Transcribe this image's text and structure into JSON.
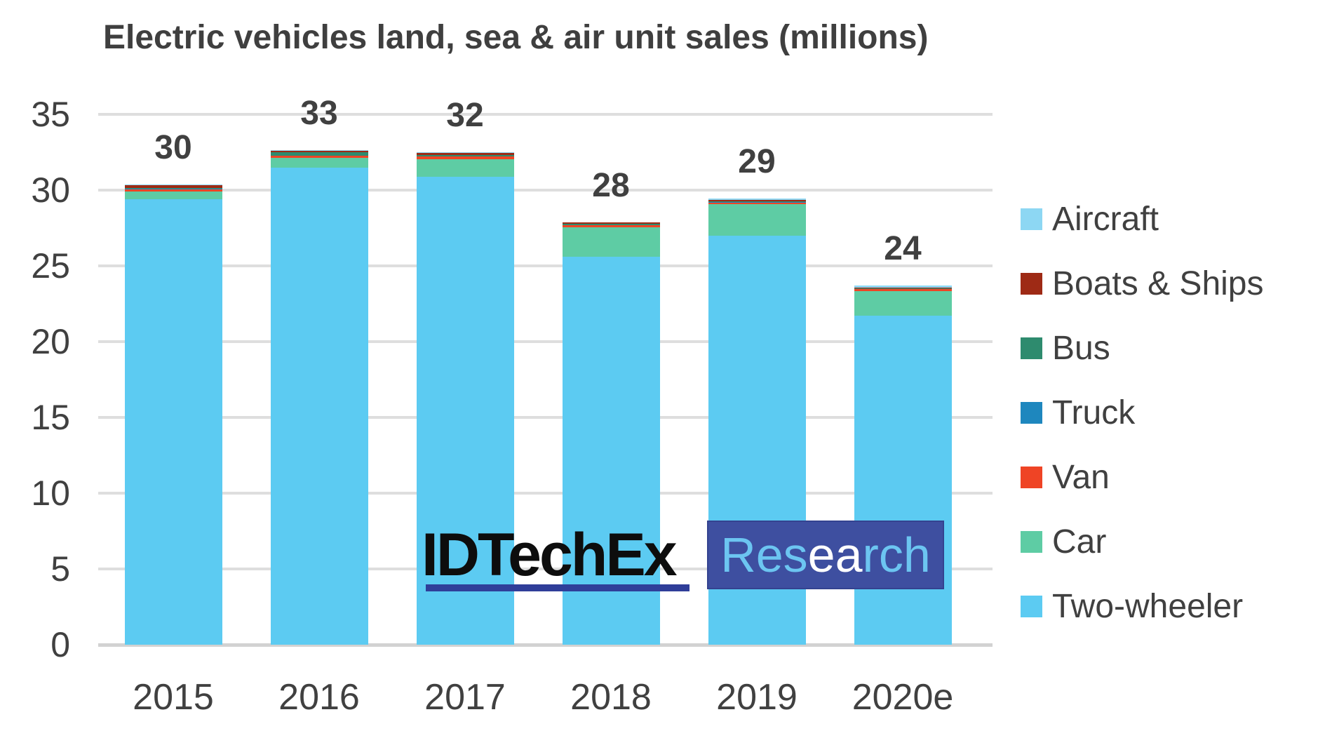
{
  "title": "Electric vehicles land, sea & air unit sales (millions)",
  "watermark": {
    "brand": "IDTechEx",
    "research_prefix": "Res",
    "research_mid": "ea",
    "research_suffix": "rch",
    "box_color": "#3E4FA0",
    "underline_color": "#2F3E99",
    "research_text_color": "#6CC5F1",
    "brand_text_color": "#0D0D0D"
  },
  "chart_data": {
    "type": "bar",
    "stacked": true,
    "title": "Electric vehicles land, sea & air unit sales (millions)",
    "categories": [
      "2015",
      "2016",
      "2017",
      "2018",
      "2019",
      "2020e"
    ],
    "series": [
      {
        "name": "Aircraft",
        "color": "#8DD7F3",
        "values": [
          0.02,
          0.02,
          0.02,
          0.02,
          0.1,
          0.12
        ]
      },
      {
        "name": "Boats & Ships",
        "color": "#9E2A15",
        "values": [
          0.18,
          0.12,
          0.14,
          0.05,
          0.1,
          0.08
        ]
      },
      {
        "name": "Bus",
        "color": "#2E8B6E",
        "values": [
          0.09,
          0.2,
          0.1,
          0.1,
          0.05,
          0.03
        ]
      },
      {
        "name": "Truck",
        "color": "#1E87BE",
        "values": [
          0.03,
          0.03,
          0.03,
          0.03,
          0.03,
          0.02
        ]
      },
      {
        "name": "Van",
        "color": "#EF4425",
        "values": [
          0.14,
          0.1,
          0.15,
          0.12,
          0.12,
          0.1
        ]
      },
      {
        "name": "Car",
        "color": "#5ECCA4",
        "values": [
          0.5,
          0.65,
          1.15,
          1.95,
          2.05,
          1.65
        ]
      },
      {
        "name": "Two-wheeler",
        "color": "#5CCBF2",
        "values": [
          29.4,
          31.5,
          30.9,
          25.6,
          27.0,
          21.7
        ]
      }
    ],
    "bar_total_labels": [
      "30",
      "33",
      "32",
      "28",
      "29",
      "24"
    ],
    "yticks": [
      0,
      5,
      10,
      15,
      20,
      25,
      30,
      35
    ],
    "ylim": [
      0,
      35
    ],
    "grid": true,
    "legend_position": "right",
    "stack_order": "series listed top-of-stack first",
    "text_color": "#404040"
  }
}
